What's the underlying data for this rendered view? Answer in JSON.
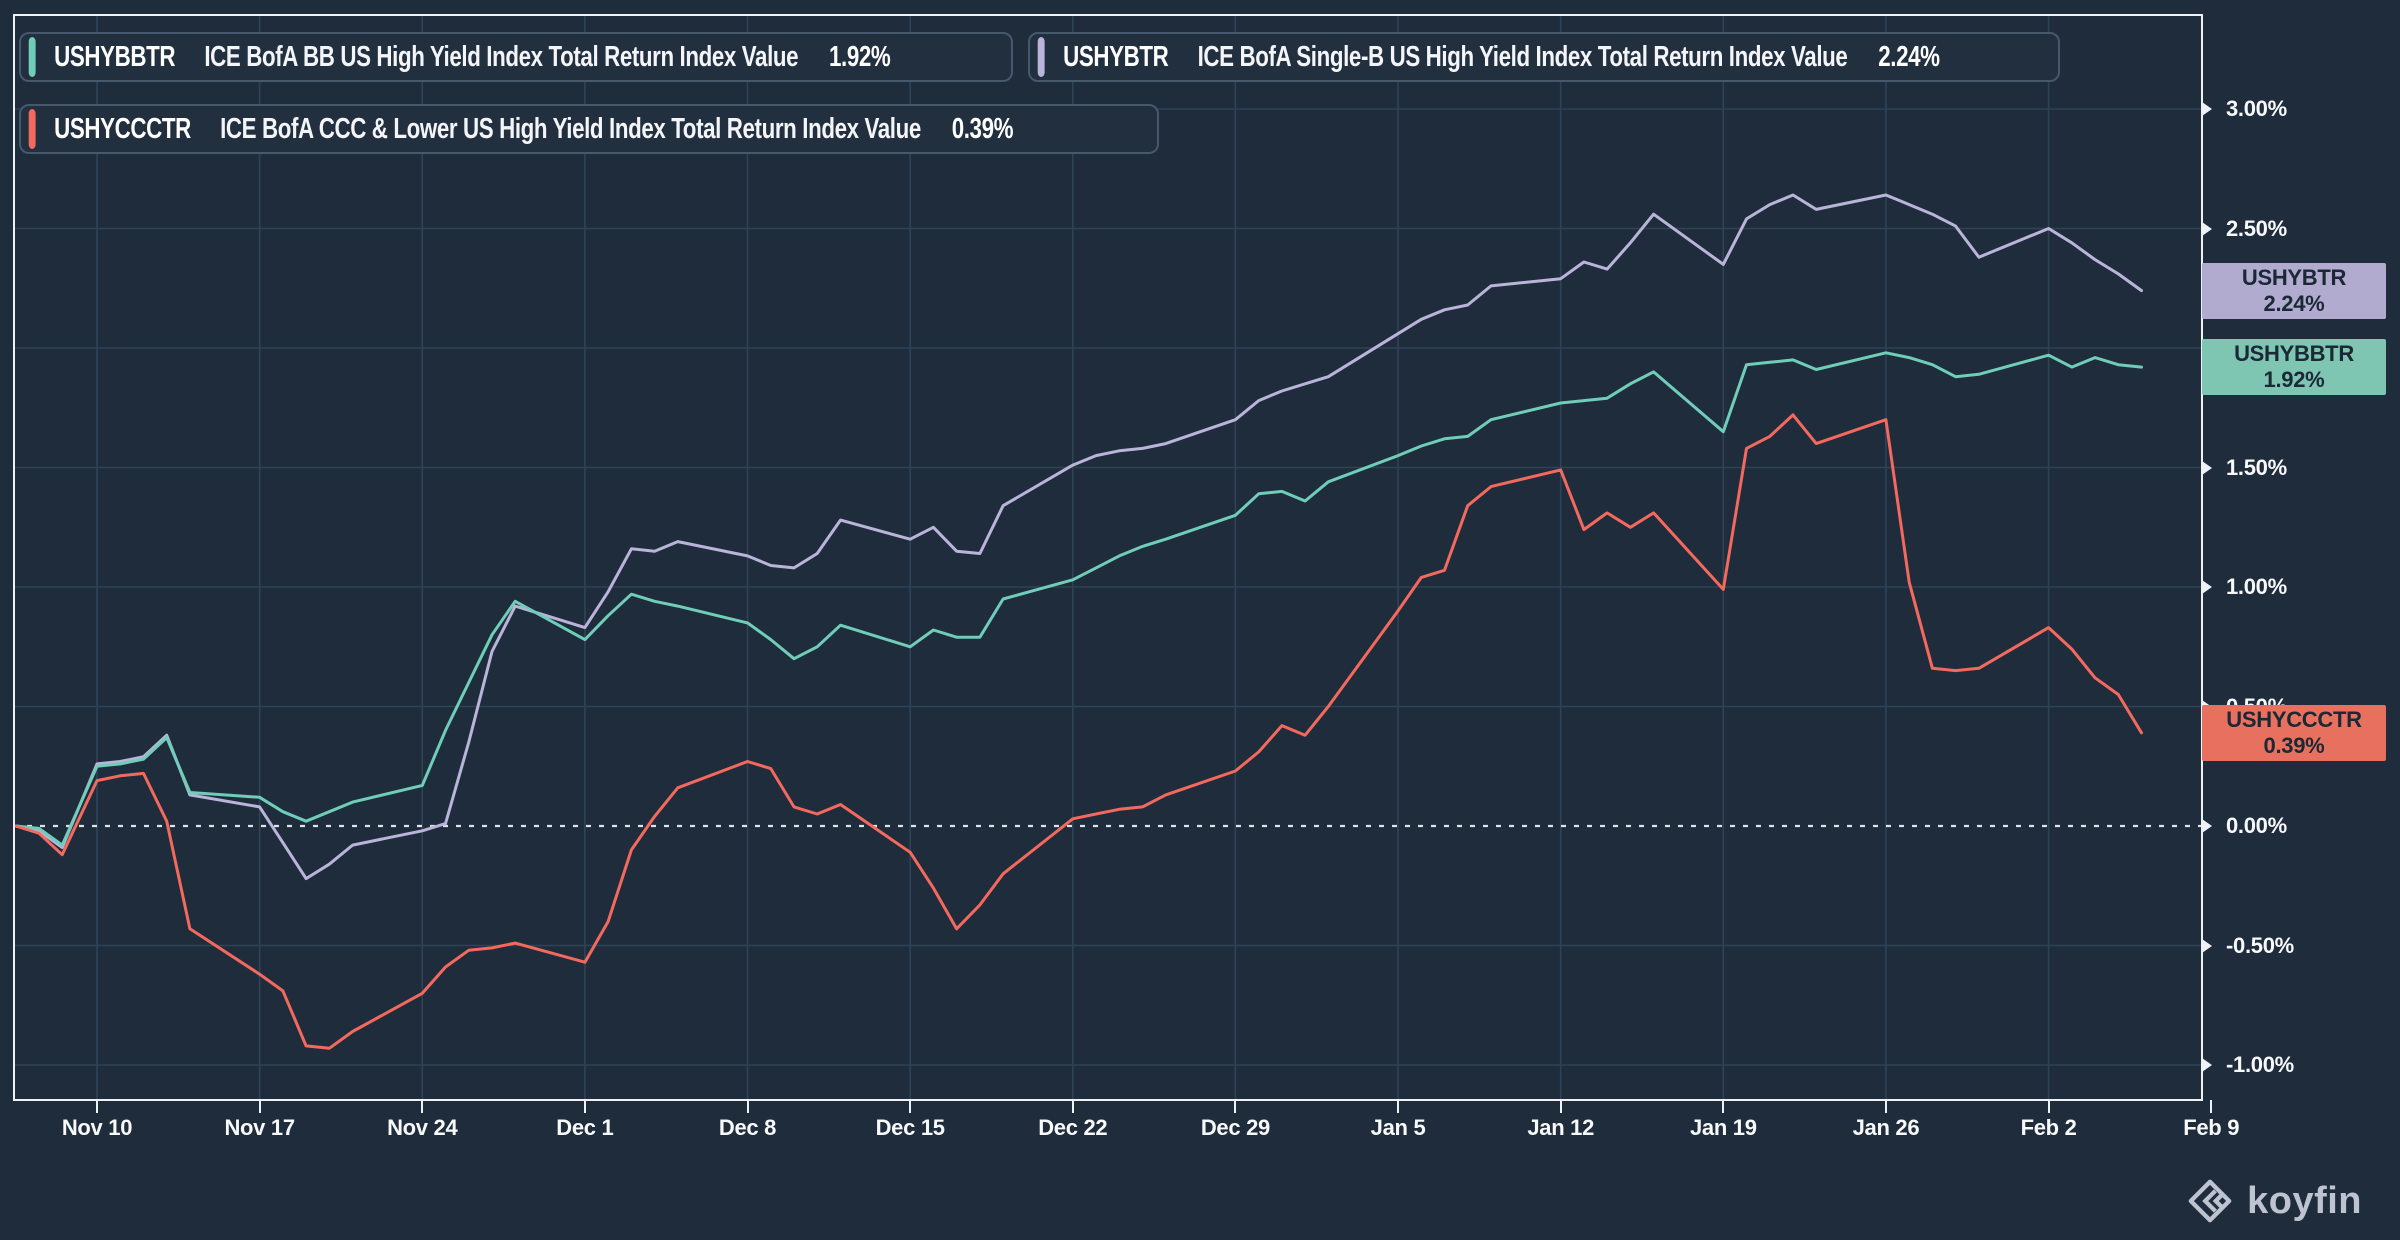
{
  "legend": {
    "items": [
      {
        "ticker": "USHYBBTR",
        "description": "ICE BofA BB US High Yield Index Total Return Index Value",
        "value": "1.92%",
        "color": "#6fcdb8"
      },
      {
        "ticker": "USHYBTR",
        "description": "ICE BofA Single-B US High Yield Index Total Return Index Value",
        "value": "2.24%",
        "color": "#bab4da"
      },
      {
        "ticker": "USHYCCCTR",
        "description": "ICE BofA CCC & Lower US High Yield Index Total Return Index Value",
        "value": "0.39%",
        "color": "#f4695e"
      }
    ]
  },
  "badges": [
    {
      "ticker": "USHYBTR",
      "value": "2.24%",
      "v": 2.24,
      "bg": "#b1accf"
    },
    {
      "ticker": "USHYBBTR",
      "value": "1.92%",
      "v": 1.92,
      "bg": "#7ec5b2"
    },
    {
      "ticker": "USHYCCCTR",
      "value": "0.39%",
      "v": 0.39,
      "bg": "#e8705f"
    }
  ],
  "footer": {
    "brand": "koyfin"
  },
  "colors": {
    "background": "#1f2c3c",
    "grid": "#2f4357",
    "plot_border": "#eef2f6",
    "zero_line": "#dce3e9",
    "axis_text": "#f7f9fb",
    "badge_text": "#1b2836",
    "logo": "#bdc4cf"
  },
  "chart_data": {
    "type": "line",
    "title": "",
    "xlabel": "",
    "ylabel": "",
    "grid": true,
    "legend_position": "top-left",
    "zero_line_dashed": true,
    "ylim": [
      -1.15,
      3.39
    ],
    "y_ticks": {
      "values": [
        3.0,
        2.5,
        2.0,
        1.5,
        1.0,
        0.5,
        0.0,
        -0.5,
        -1.0
      ],
      "labels": [
        "3.00%",
        "2.50%",
        "2.00%",
        "1.50%",
        "1.00%",
        "0.50%",
        "0.00%",
        "-0.50%",
        "-1.00%"
      ]
    },
    "x_ticks": {
      "labels": [
        "Nov 10",
        "Nov 17",
        "Nov 24",
        "Dec 1",
        "Dec 8",
        "Dec 15",
        "Dec 22",
        "Dec 29",
        "Jan 5",
        "Jan 12",
        "Jan 19",
        "Jan 26",
        "Feb 2",
        "Feb 9"
      ],
      "offsets": [
        4,
        11,
        18,
        25,
        32,
        39,
        46,
        53,
        60,
        67,
        74,
        81,
        88,
        95
      ]
    },
    "x_offsets": [
      0.5,
      1.5,
      2.5,
      4,
      5,
      6,
      7,
      8,
      11,
      12,
      13,
      14,
      15,
      18,
      19,
      20,
      21,
      22,
      25,
      26,
      27,
      28,
      29,
      32,
      33,
      34,
      35,
      36,
      39,
      40,
      41,
      42,
      43,
      46,
      47,
      48,
      49,
      50,
      53,
      54,
      55,
      56,
      57,
      60,
      61,
      62,
      63,
      64,
      67,
      68,
      69,
      70,
      71,
      74,
      75,
      76,
      77,
      78,
      81,
      82,
      83,
      84,
      85,
      88,
      89,
      90,
      91,
      92
    ],
    "series": [
      {
        "name": "USHYBTR",
        "description": "ICE BofA Single-B US High Yield Index Total Return Index Value",
        "last_value": 2.24,
        "color": "#bab4da",
        "values": [
          0.0,
          -0.02,
          -0.09,
          0.26,
          0.27,
          0.29,
          0.38,
          0.13,
          0.08,
          -0.07,
          -0.22,
          -0.16,
          -0.08,
          -0.02,
          0.01,
          0.35,
          0.73,
          0.92,
          0.83,
          0.98,
          1.16,
          1.15,
          1.19,
          1.13,
          1.09,
          1.08,
          1.14,
          1.28,
          1.2,
          1.25,
          1.15,
          1.14,
          1.34,
          1.51,
          1.55,
          1.57,
          1.58,
          1.6,
          1.7,
          1.78,
          1.82,
          1.85,
          1.88,
          2.06,
          2.12,
          2.16,
          2.18,
          2.26,
          2.29,
          2.36,
          2.33,
          2.44,
          2.56,
          2.35,
          2.54,
          2.6,
          2.64,
          2.58,
          2.64,
          2.6,
          2.56,
          2.51,
          2.38,
          2.5,
          2.44,
          2.37,
          2.31,
          2.24
        ]
      },
      {
        "name": "USHYBBTR",
        "description": "ICE BofA BB US High Yield Index Total Return Index Value",
        "last_value": 1.92,
        "color": "#6fcdb8",
        "values": [
          0.0,
          -0.01,
          -0.08,
          0.25,
          0.26,
          0.28,
          0.37,
          0.14,
          0.12,
          0.06,
          0.02,
          0.06,
          0.1,
          0.17,
          0.4,
          0.6,
          0.8,
          0.94,
          0.78,
          0.88,
          0.97,
          0.94,
          0.92,
          0.85,
          0.78,
          0.7,
          0.75,
          0.84,
          0.75,
          0.82,
          0.79,
          0.79,
          0.95,
          1.03,
          1.08,
          1.13,
          1.17,
          1.2,
          1.3,
          1.39,
          1.4,
          1.36,
          1.44,
          1.55,
          1.59,
          1.62,
          1.63,
          1.7,
          1.77,
          1.78,
          1.79,
          1.85,
          1.9,
          1.65,
          1.93,
          1.94,
          1.95,
          1.91,
          1.98,
          1.96,
          1.93,
          1.88,
          1.89,
          1.97,
          1.92,
          1.96,
          1.93,
          1.92
        ]
      },
      {
        "name": "USHYCCCTR",
        "description": "ICE BofA CCC & Lower US High Yield Index Total Return Index Value",
        "last_value": 0.39,
        "color": "#f4695e",
        "values": [
          0.0,
          -0.03,
          -0.12,
          0.19,
          0.21,
          0.22,
          0.02,
          -0.43,
          -0.62,
          -0.69,
          -0.92,
          -0.93,
          -0.86,
          -0.7,
          -0.59,
          -0.52,
          -0.51,
          -0.49,
          -0.57,
          -0.4,
          -0.1,
          0.04,
          0.16,
          0.27,
          0.24,
          0.08,
          0.05,
          0.09,
          -0.11,
          -0.26,
          -0.43,
          -0.33,
          -0.2,
          0.03,
          0.05,
          0.07,
          0.08,
          0.13,
          0.23,
          0.31,
          0.42,
          0.38,
          0.5,
          0.9,
          1.04,
          1.07,
          1.34,
          1.42,
          1.49,
          1.24,
          1.31,
          1.25,
          1.31,
          0.99,
          1.58,
          1.63,
          1.72,
          1.6,
          1.7,
          1.02,
          0.66,
          0.65,
          0.66,
          0.83,
          0.74,
          0.62,
          0.55,
          0.39
        ]
      }
    ]
  }
}
